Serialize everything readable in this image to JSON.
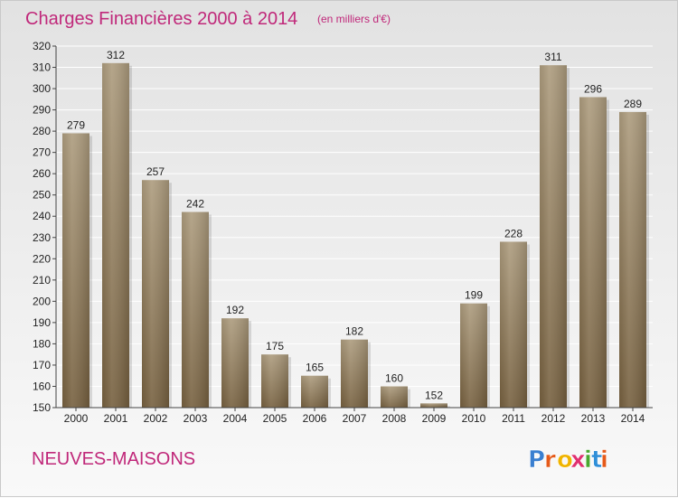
{
  "chart_data": {
    "type": "bar",
    "title": "Charges Financières 2000 à 2014",
    "subtitle": "(en milliers d'€)",
    "categories": [
      "2000",
      "2001",
      "2002",
      "2003",
      "2004",
      "2005",
      "2006",
      "2007",
      "2008",
      "2009",
      "2010",
      "2011",
      "2012",
      "2013",
      "2014"
    ],
    "values": [
      279,
      312,
      257,
      242,
      192,
      175,
      165,
      182,
      160,
      152,
      199,
      228,
      311,
      296,
      289
    ],
    "data_labels": [
      "279",
      "312",
      "257",
      "242",
      "192",
      "175",
      "165",
      "182",
      "160",
      "152",
      "199",
      "228",
      "311",
      "296",
      "289"
    ],
    "ylim": [
      150,
      320
    ],
    "yticks": [
      150,
      160,
      170,
      180,
      190,
      200,
      210,
      220,
      230,
      240,
      250,
      260,
      270,
      280,
      290,
      300,
      310,
      320
    ],
    "ytick_labels": [
      "150",
      "160",
      "170",
      "180",
      "190",
      "200",
      "210",
      "220",
      "230",
      "240",
      "250",
      "260",
      "270",
      "280",
      "290",
      "300",
      "310",
      "320"
    ],
    "grid": true,
    "bar_color": "#8c7a5e",
    "xlabel": "",
    "ylabel": ""
  },
  "footer": {
    "place_name": "NEUVES-MAISONS",
    "logo_text": "Proxiti",
    "logo_letter_colors": [
      "#3a7fd0",
      "#e55a1a",
      "#f0b400",
      "#e03070",
      "#4aa830",
      "#2f8fd8",
      "#e55a1a"
    ]
  },
  "colors": {
    "title": "#c0287a",
    "grid": "#ffffff",
    "axis": "#444444"
  }
}
